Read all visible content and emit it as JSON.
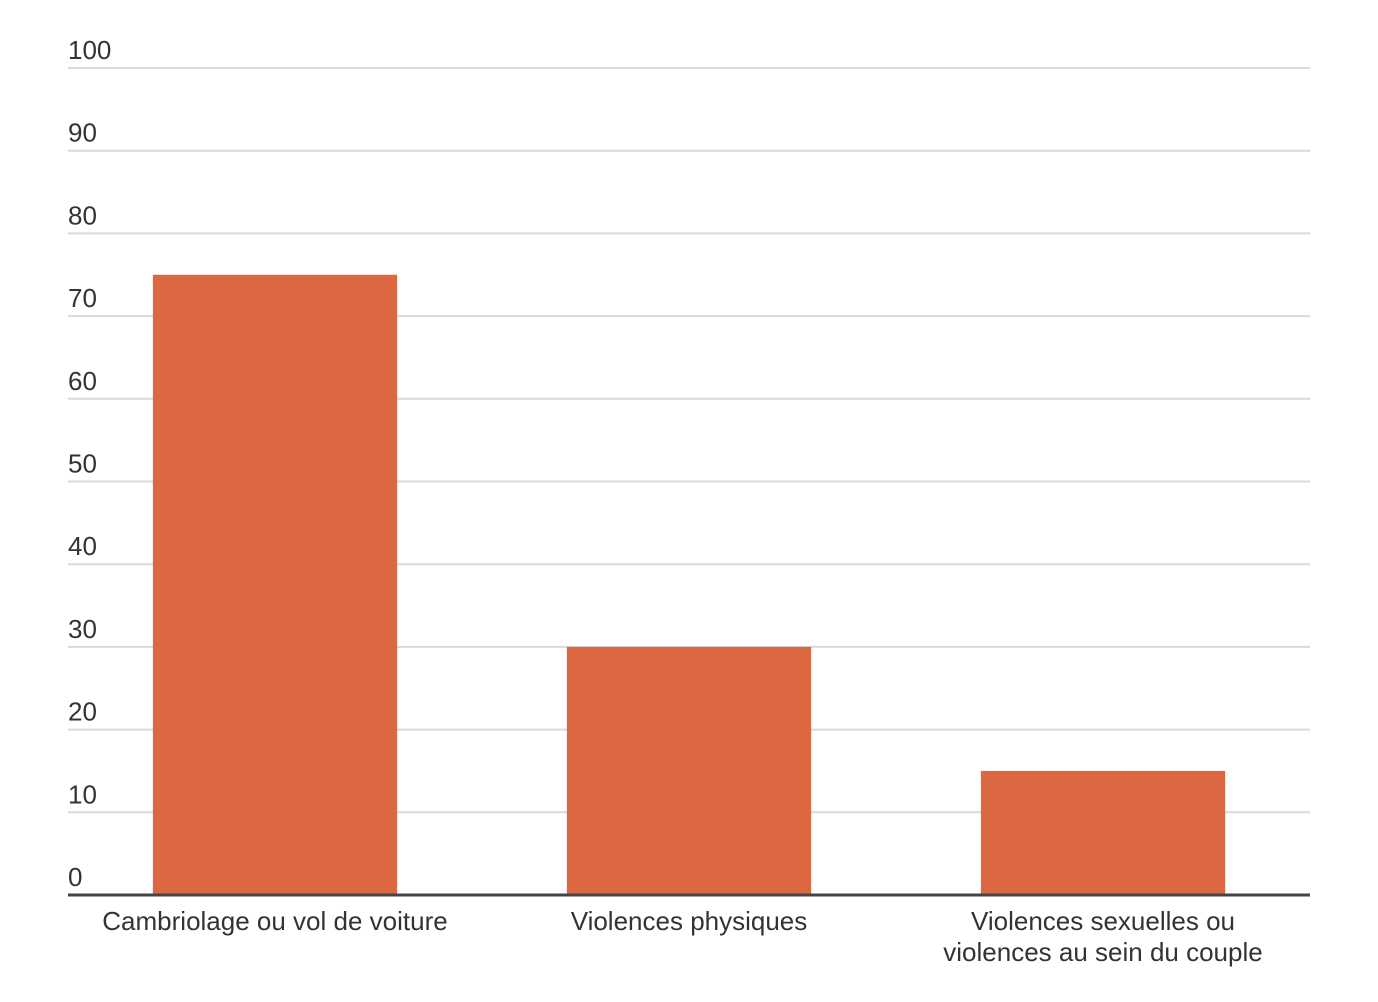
{
  "chart_data": {
    "type": "bar",
    "categories": [
      [
        "Cambriolage ou vol de voiture"
      ],
      [
        "Violences physiques"
      ],
      [
        "Violences sexuelles ou",
        "violences au sein du couple"
      ]
    ],
    "values": [
      75,
      30,
      15
    ],
    "ylim": [
      0,
      100
    ],
    "yticks": [
      0,
      10,
      20,
      30,
      40,
      50,
      60,
      70,
      80,
      90,
      100
    ],
    "grid": true,
    "bar_color": "#db6840",
    "title": "",
    "xlabel": "",
    "ylabel": ""
  }
}
